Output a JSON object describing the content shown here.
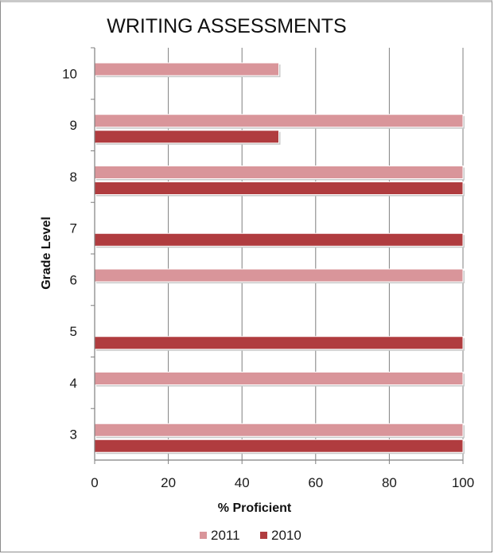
{
  "chart_data": {
    "type": "bar",
    "orientation": "horizontal",
    "title": "WRITING ASSESSMENTS",
    "xlabel": "% Proficient",
    "ylabel": "Grade Level",
    "categories": [
      "3",
      "4",
      "5",
      "6",
      "7",
      "8",
      "9",
      "10"
    ],
    "series": [
      {
        "name": "2011",
        "color": "#d9959a",
        "values": [
          100,
          100,
          null,
          100,
          null,
          100,
          100,
          50
        ]
      },
      {
        "name": "2010",
        "color": "#b03c3f",
        "values": [
          100,
          null,
          100,
          null,
          100,
          100,
          50,
          null
        ]
      }
    ],
    "xlim": [
      0,
      100
    ],
    "xticks": [
      "0",
      "20",
      "40",
      "60",
      "80",
      "100"
    ],
    "grid": "vertical",
    "legend": "bottom"
  }
}
